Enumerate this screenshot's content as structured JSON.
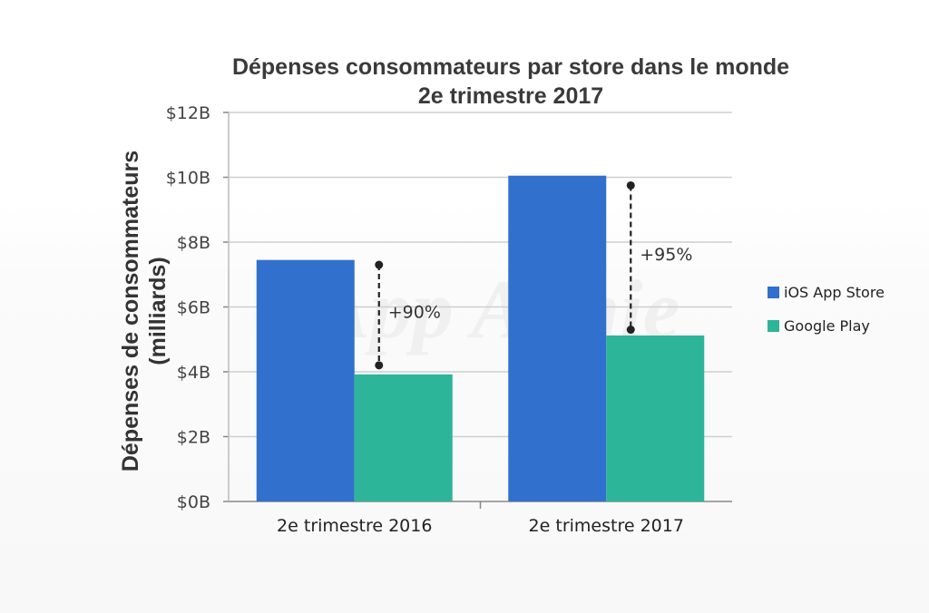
{
  "chart_data": {
    "type": "bar",
    "title": "Dépenses consommateurs par store dans le monde",
    "subtitle": "2e trimestre 2017",
    "ylabel": "Dépenses de consommateurs",
    "ylabel_sub": "(milliards)",
    "categories": [
      "2e trimestre 2016",
      "2e trimestre 2017"
    ],
    "series": [
      {
        "name": "iOS App Store",
        "values": [
          7.45,
          10.05
        ],
        "color": "#3170cc"
      },
      {
        "name": "Google Play",
        "values": [
          3.92,
          5.12
        ],
        "color": "#2db59a"
      }
    ],
    "ylim": [
      0,
      12
    ],
    "yticks": [
      0,
      2,
      4,
      6,
      8,
      10,
      12
    ],
    "ytick_labels": [
      "$0B",
      "$2B",
      "$4B",
      "$6B",
      "$8B",
      "$10B",
      "$12B"
    ],
    "grid": true,
    "legend": "right",
    "annotations": [
      {
        "category": "2e trimestre 2016",
        "text": "+90%",
        "from": 4.2,
        "to": 7.3
      },
      {
        "category": "2e trimestre 2017",
        "text": "+95%",
        "from": 5.3,
        "to": 9.75
      }
    ]
  },
  "watermark": "App Annie"
}
